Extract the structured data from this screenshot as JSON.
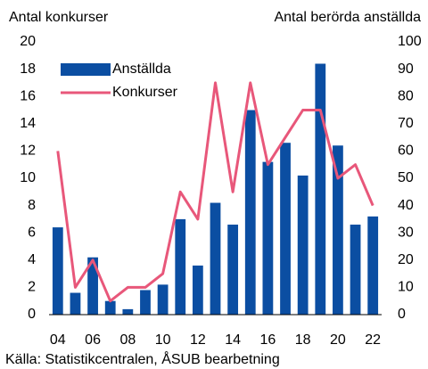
{
  "chart_data": {
    "type": "bar_line",
    "y_label": "Antal konkurser",
    "y2_label": "Antal berörda anställda",
    "source": "Källa: Statistikcentralen, ÅSUB bearbetning",
    "categories": [
      "04",
      null,
      "06",
      null,
      "08",
      null,
      "10",
      null,
      "12",
      null,
      "14",
      null,
      "16",
      null,
      "18",
      null,
      "20",
      null,
      "22"
    ],
    "series": [
      {
        "name": "Anställda",
        "type": "bar",
        "axis": "y2",
        "color": "#0b4ea2",
        "values": [
          32,
          8,
          21,
          5,
          2,
          9,
          11,
          35,
          18,
          41,
          33,
          75,
          56,
          63,
          51,
          92,
          62,
          33,
          36
        ]
      },
      {
        "name": "Konkurser",
        "type": "line",
        "axis": "y",
        "color": "#e8577a",
        "values": [
          12,
          2,
          4,
          1,
          2,
          2,
          3,
          9,
          7,
          17,
          9,
          17,
          11,
          13,
          15,
          15,
          10,
          11,
          8
        ]
      }
    ],
    "ylim": [
      0,
      20
    ],
    "yticks": [
      0,
      2,
      4,
      6,
      8,
      10,
      12,
      14,
      16,
      18,
      20
    ],
    "y2lim": [
      0,
      100
    ],
    "y2ticks": [
      0,
      10,
      20,
      30,
      40,
      50,
      60,
      70,
      80,
      90,
      100
    ],
    "legend": "upper-left"
  }
}
